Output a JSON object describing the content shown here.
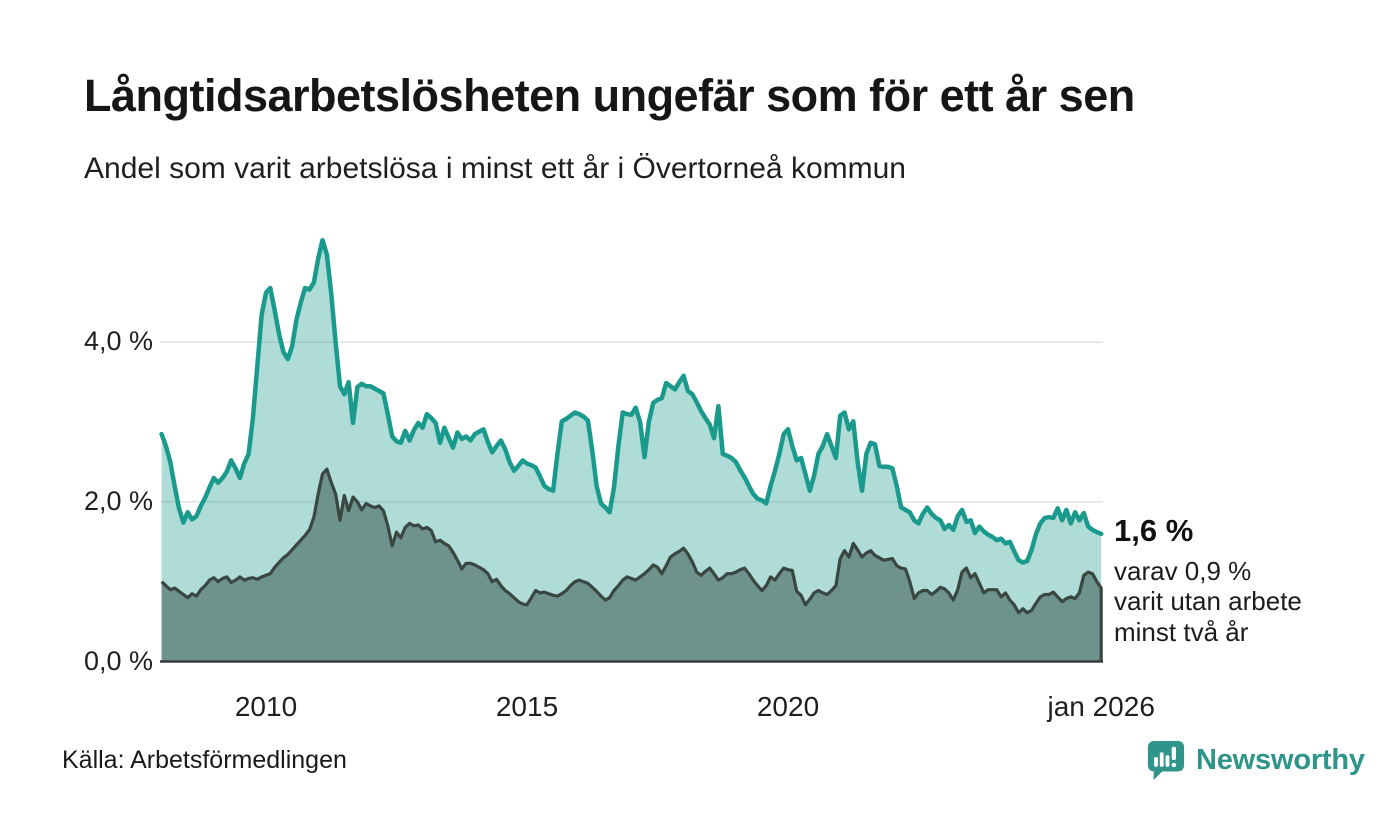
{
  "chart_data": {
    "type": "area",
    "title": "Långtidsarbetslösheten ungefär som för ett år sen",
    "subtitle": "Andel som varit arbetslösa i minst ett år i Övertorneå kommun",
    "unit": "%",
    "grid": true,
    "legend_position": "none",
    "colors": {
      "accent_teal": "#1a9a8c",
      "light_fill": "rgba(26,154,140,0.35)",
      "dark_fill": "#6d938c",
      "dark_line": "#3a4642",
      "gridline": "#e2e2e2",
      "baseline": "#3b3b3b"
    },
    "x_axis": {
      "start_year": 2008,
      "end": "jan 2026",
      "ticks": [
        {
          "label": "2010",
          "year": 2010
        },
        {
          "label": "2015",
          "year": 2015
        },
        {
          "label": "2020",
          "year": 2020
        },
        {
          "label": "jan 2026",
          "year": 2026
        }
      ]
    },
    "y_axis": {
      "range": [
        0,
        5.5
      ],
      "ticks": [
        {
          "label": "0,0 %",
          "value": 0
        },
        {
          "label": "2,0 %",
          "value": 2
        },
        {
          "label": "4,0 %",
          "value": 4
        }
      ]
    },
    "series": [
      {
        "name": "Andel som varit arbetslösa i minst ett år",
        "color": "#1a9a8c",
        "fill": "rgba(26,154,140,0.35)",
        "line_width": 4.5,
        "start_year": 2008,
        "interval_months": 1,
        "last_value_label": "1,6 %",
        "values": [
          2.85,
          2.7,
          2.5,
          2.2,
          1.92,
          1.74,
          1.87,
          1.78,
          1.82,
          1.95,
          2.05,
          2.18,
          2.3,
          2.24,
          2.3,
          2.38,
          2.52,
          2.42,
          2.3,
          2.48,
          2.6,
          3.05,
          3.7,
          4.35,
          4.62,
          4.68,
          4.4,
          4.1,
          3.88,
          3.79,
          3.95,
          4.28,
          4.5,
          4.68,
          4.66,
          4.75,
          5.05,
          5.28,
          5.1,
          4.6,
          4.0,
          3.45,
          3.35,
          3.5,
          2.99,
          3.44,
          3.48,
          3.45,
          3.45,
          3.42,
          3.39,
          3.36,
          3.1,
          2.82,
          2.76,
          2.74,
          2.89,
          2.77,
          2.9,
          2.99,
          2.93,
          3.1,
          3.05,
          2.99,
          2.74,
          2.93,
          2.8,
          2.68,
          2.87,
          2.79,
          2.82,
          2.77,
          2.85,
          2.88,
          2.91,
          2.75,
          2.62,
          2.7,
          2.77,
          2.66,
          2.5,
          2.39,
          2.45,
          2.52,
          2.48,
          2.46,
          2.43,
          2.32,
          2.2,
          2.16,
          2.14,
          2.6,
          3.01,
          3.04,
          3.08,
          3.12,
          3.1,
          3.07,
          3.02,
          2.64,
          2.2,
          1.98,
          1.93,
          1.87,
          2.18,
          2.7,
          3.12,
          3.1,
          3.09,
          3.18,
          3.0,
          2.56,
          3.0,
          3.24,
          3.28,
          3.3,
          3.49,
          3.45,
          3.41,
          3.5,
          3.58,
          3.39,
          3.35,
          3.25,
          3.14,
          3.05,
          2.97,
          2.8,
          3.2,
          2.6,
          2.58,
          2.55,
          2.5,
          2.4,
          2.31,
          2.2,
          2.1,
          2.04,
          2.02,
          1.98,
          2.2,
          2.39,
          2.6,
          2.85,
          2.91,
          2.7,
          2.52,
          2.55,
          2.35,
          2.14,
          2.33,
          2.6,
          2.7,
          2.85,
          2.7,
          2.55,
          3.08,
          3.12,
          2.91,
          3.01,
          2.5,
          2.14,
          2.6,
          2.74,
          2.72,
          2.45,
          2.44,
          2.44,
          2.42,
          2.2,
          1.93,
          1.9,
          1.87,
          1.77,
          1.73,
          1.85,
          1.93,
          1.85,
          1.8,
          1.77,
          1.66,
          1.71,
          1.65,
          1.82,
          1.9,
          1.75,
          1.77,
          1.61,
          1.69,
          1.63,
          1.59,
          1.56,
          1.52,
          1.54,
          1.48,
          1.5,
          1.38,
          1.27,
          1.24,
          1.26,
          1.4,
          1.6,
          1.73,
          1.8,
          1.81,
          1.8,
          1.92,
          1.77,
          1.9,
          1.73,
          1.87,
          1.77,
          1.86,
          1.69,
          1.65,
          1.62,
          1.6
        ]
      },
      {
        "name": "varav arbetslösa i minst två år",
        "color": "#3a4642",
        "fill": "#6d938c",
        "line_width": 3.2,
        "start_year": 2008,
        "interval_months": 1,
        "last_value_label": "0,9 %",
        "values": [
          1.0,
          0.95,
          0.9,
          0.92,
          0.88,
          0.84,
          0.8,
          0.85,
          0.82,
          0.9,
          0.95,
          1.02,
          1.05,
          1.0,
          1.04,
          1.06,
          0.99,
          1.02,
          1.06,
          1.02,
          1.04,
          1.05,
          1.03,
          1.06,
          1.08,
          1.1,
          1.18,
          1.24,
          1.3,
          1.34,
          1.4,
          1.46,
          1.52,
          1.58,
          1.65,
          1.81,
          2.1,
          2.35,
          2.41,
          2.24,
          2.1,
          1.77,
          2.08,
          1.89,
          2.06,
          2.0,
          1.9,
          1.98,
          1.95,
          1.93,
          1.95,
          1.89,
          1.7,
          1.45,
          1.62,
          1.55,
          1.68,
          1.73,
          1.7,
          1.71,
          1.66,
          1.68,
          1.64,
          1.5,
          1.52,
          1.48,
          1.45,
          1.37,
          1.27,
          1.16,
          1.23,
          1.23,
          1.21,
          1.18,
          1.15,
          1.1,
          1.0,
          1.03,
          0.95,
          0.89,
          0.85,
          0.8,
          0.75,
          0.72,
          0.71,
          0.8,
          0.89,
          0.86,
          0.87,
          0.85,
          0.83,
          0.82,
          0.85,
          0.89,
          0.95,
          1.0,
          1.02,
          1.0,
          0.98,
          0.93,
          0.88,
          0.82,
          0.77,
          0.8,
          0.89,
          0.95,
          1.02,
          1.06,
          1.04,
          1.02,
          1.06,
          1.1,
          1.15,
          1.21,
          1.18,
          1.1,
          1.2,
          1.31,
          1.35,
          1.38,
          1.42,
          1.35,
          1.25,
          1.12,
          1.08,
          1.13,
          1.17,
          1.1,
          1.02,
          1.05,
          1.1,
          1.1,
          1.12,
          1.15,
          1.17,
          1.1,
          1.02,
          0.95,
          0.89,
          0.95,
          1.06,
          1.02,
          1.1,
          1.17,
          1.15,
          1.14,
          0.88,
          0.83,
          0.71,
          0.78,
          0.86,
          0.89,
          0.86,
          0.84,
          0.89,
          0.95,
          1.29,
          1.39,
          1.31,
          1.48,
          1.4,
          1.31,
          1.36,
          1.39,
          1.33,
          1.3,
          1.27,
          1.28,
          1.29,
          1.2,
          1.17,
          1.16,
          1.0,
          0.79,
          0.86,
          0.89,
          0.89,
          0.84,
          0.88,
          0.93,
          0.91,
          0.86,
          0.77,
          0.9,
          1.12,
          1.17,
          1.05,
          1.1,
          0.98,
          0.86,
          0.9,
          0.9,
          0.9,
          0.81,
          0.86,
          0.77,
          0.71,
          0.61,
          0.66,
          0.61,
          0.64,
          0.73,
          0.81,
          0.84,
          0.84,
          0.87,
          0.81,
          0.75,
          0.79,
          0.81,
          0.79,
          0.86,
          1.08,
          1.12,
          1.1,
          1.0,
          0.92
        ]
      }
    ],
    "annotation": {
      "value": "1,6 %",
      "lines": [
        "varav 0,9 %",
        "varit utan arbete",
        "minst två år"
      ]
    }
  },
  "footer": {
    "source": "Källa: Arbetsförmedlingen",
    "brand": "Newsworthy",
    "brand_color": "#2f948a"
  }
}
